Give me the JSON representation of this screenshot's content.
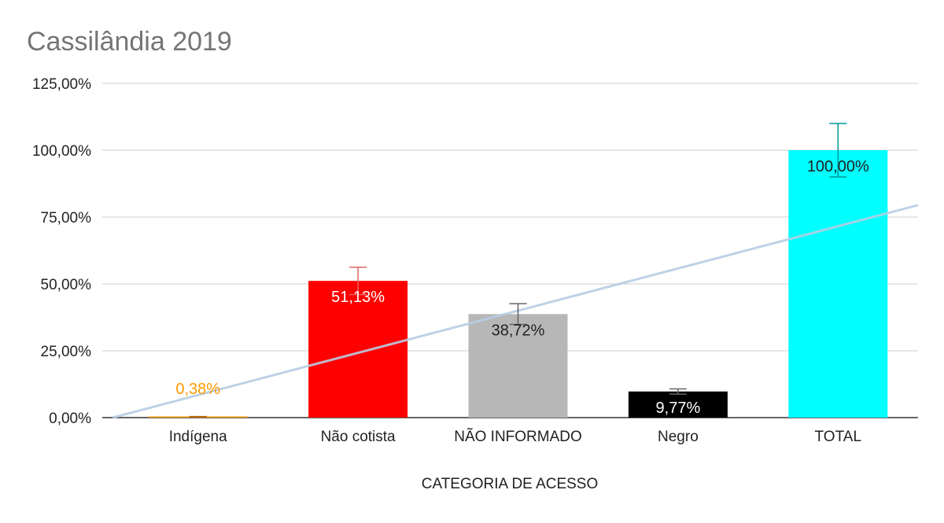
{
  "chart_data": {
    "type": "bar",
    "title": "Cassilândia 2019",
    "xlabel": "CATEGORIA DE ACESSO",
    "ylabel": "",
    "ylim": [
      0,
      125
    ],
    "y_ticks": [
      0,
      25,
      50,
      75,
      100,
      125
    ],
    "y_tick_labels": [
      "0,00%",
      "25,00%",
      "50,00%",
      "75,00%",
      "100,00%",
      "125,00%"
    ],
    "grid": true,
    "legend": "none",
    "categories": [
      "Indígena",
      "Não cotista",
      "NÃO INFORMADO",
      "Negro",
      "TOTAL"
    ],
    "values": [
      0.38,
      51.13,
      38.72,
      9.77,
      100.0
    ],
    "data_labels": [
      "0,38%",
      "51,13%",
      "38,72%",
      "9,77%",
      "100,00%"
    ],
    "colors": [
      "#ff9900",
      "#ff0000",
      "#b7b7b7",
      "#000000",
      "#00ffff"
    ],
    "label_colors": [
      "#ff9900",
      "#ffffff",
      "#222222",
      "#ffffff",
      "#222222"
    ],
    "error_colors": [
      "#b45f06",
      "#e06666",
      "#666666",
      "#666666",
      "#009999"
    ],
    "error_bar_percent": 10,
    "trendline": {
      "type": "linear",
      "color": "#b7cde3"
    }
  }
}
